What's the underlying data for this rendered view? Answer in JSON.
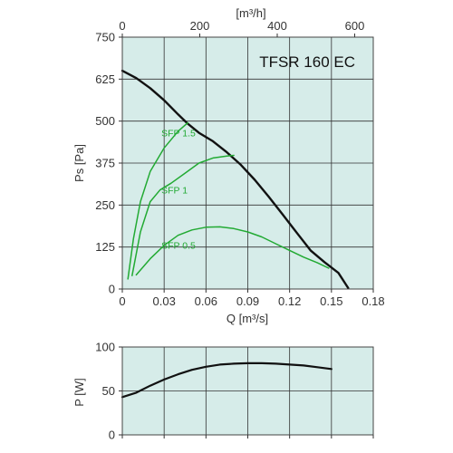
{
  "chart_data": [
    {
      "type": "line",
      "title": "TFSR 160 EC",
      "xlabel": "Q [m³/s]",
      "x2label": "[m³/h]",
      "ylabel": "Ps [Pa]",
      "xlim": [
        0,
        0.18
      ],
      "ylim": [
        0,
        750
      ],
      "x2lim": [
        0,
        648
      ],
      "x_ticks": [
        "0",
        "0.03",
        "0.06",
        "0.09",
        "0.12",
        "0.15",
        "0.18"
      ],
      "x2_ticks": [
        "0",
        "200",
        "400",
        "600"
      ],
      "y_ticks": [
        "0",
        "125",
        "250",
        "375",
        "500",
        "625",
        "750"
      ],
      "grid": true,
      "background": "#d6ece9",
      "series": [
        {
          "name": "",
          "color": "#111111",
          "points": [
            [
              0,
              650
            ],
            [
              0.01,
              628
            ],
            [
              0.02,
              598
            ],
            [
              0.03,
              562
            ],
            [
              0.04,
              520
            ],
            [
              0.047,
              492
            ],
            [
              0.055,
              465
            ],
            [
              0.065,
              440
            ],
            [
              0.075,
              407
            ],
            [
              0.085,
              370
            ],
            [
              0.095,
              325
            ],
            [
              0.105,
              275
            ],
            [
              0.115,
              222
            ],
            [
              0.125,
              168
            ],
            [
              0.135,
              115
            ],
            [
              0.145,
              80
            ],
            [
              0.155,
              48
            ],
            [
              0.162,
              3
            ]
          ]
        },
        {
          "name": "SFP 1.5",
          "color": "#22aa33",
          "label": "SFP 1.5",
          "points": [
            [
              0.004,
              30
            ],
            [
              0.008,
              150
            ],
            [
              0.013,
              260
            ],
            [
              0.02,
              350
            ],
            [
              0.03,
              420
            ],
            [
              0.04,
              470
            ],
            [
              0.047,
              495
            ]
          ]
        },
        {
          "name": "SFP 1",
          "color": "#22aa33",
          "label": "SFP 1",
          "points": [
            [
              0.007,
              40
            ],
            [
              0.013,
              170
            ],
            [
              0.02,
              260
            ],
            [
              0.027,
              295
            ],
            [
              0.035,
              315
            ],
            [
              0.045,
              345
            ],
            [
              0.055,
              375
            ],
            [
              0.065,
              390
            ],
            [
              0.075,
              396
            ],
            [
              0.08,
              398
            ]
          ]
        },
        {
          "name": "SFP 0.5",
          "color": "#22aa33",
          "label": "SFP 0.5",
          "points": [
            [
              0.01,
              42
            ],
            [
              0.02,
              90
            ],
            [
              0.03,
              130
            ],
            [
              0.04,
              160
            ],
            [
              0.05,
              176
            ],
            [
              0.06,
              184
            ],
            [
              0.07,
              185
            ],
            [
              0.08,
              180
            ],
            [
              0.09,
              170
            ],
            [
              0.1,
              155
            ],
            [
              0.11,
              135
            ],
            [
              0.12,
              115
            ],
            [
              0.13,
              95
            ],
            [
              0.14,
              78
            ],
            [
              0.148,
              62
            ]
          ]
        }
      ]
    },
    {
      "type": "line",
      "title": "",
      "xlabel": "",
      "ylabel": "P [W]",
      "xlim": [
        0,
        0.18
      ],
      "ylim": [
        0,
        100
      ],
      "y_ticks": [
        "0",
        "50",
        "100"
      ],
      "grid": true,
      "background": "#d6ece9",
      "series": [
        {
          "name": "",
          "color": "#111111",
          "points": [
            [
              0,
              43
            ],
            [
              0.01,
              48
            ],
            [
              0.02,
              56
            ],
            [
              0.03,
              63
            ],
            [
              0.04,
              69
            ],
            [
              0.05,
              74
            ],
            [
              0.06,
              77.5
            ],
            [
              0.07,
              80
            ],
            [
              0.08,
              81
            ],
            [
              0.09,
              81.5
            ],
            [
              0.1,
              81.5
            ],
            [
              0.11,
              81
            ],
            [
              0.12,
              80
            ],
            [
              0.13,
              79
            ],
            [
              0.14,
              77
            ],
            [
              0.15,
              75
            ]
          ]
        }
      ]
    }
  ]
}
